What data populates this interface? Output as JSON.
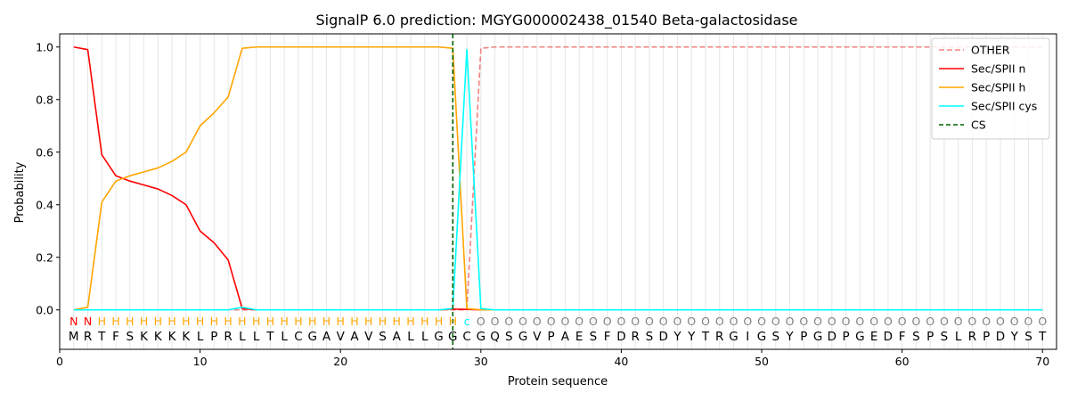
{
  "chart_data": {
    "type": "line",
    "title": "SignalP 6.0 prediction: MGYG000002438_01540 Beta-galactosidase",
    "xlabel": "Protein sequence",
    "ylabel": "Probability",
    "xlim": [
      0,
      71
    ],
    "ylim": [
      -0.15,
      1.05
    ],
    "x_ticks": [
      0,
      10,
      20,
      30,
      40,
      50,
      60,
      70
    ],
    "y_ticks": [
      0.0,
      0.2,
      0.4,
      0.6,
      0.8,
      1.0
    ],
    "x_tick_labels": [
      "0",
      "10",
      "20",
      "30",
      "40",
      "50",
      "60",
      "70"
    ],
    "y_tick_labels": [
      "0.0",
      "0.2",
      "0.4",
      "0.6",
      "0.8",
      "1.0"
    ],
    "grid": "vertical lines at each residue",
    "legend_position": "top-right",
    "sequence": [
      "M",
      "R",
      "T",
      "F",
      "S",
      "K",
      "K",
      "K",
      "K",
      "L",
      "P",
      "R",
      "L",
      "L",
      "T",
      "L",
      "C",
      "G",
      "A",
      "V",
      "A",
      "V",
      "S",
      "A",
      "L",
      "L",
      "G",
      "G",
      "C",
      "G",
      "Q",
      "S",
      "G",
      "V",
      "P",
      "A",
      "E",
      "S",
      "F",
      "D",
      "R",
      "S",
      "D",
      "Y",
      "Y",
      "T",
      "R",
      "G",
      "I",
      "G",
      "S",
      "Y",
      "P",
      "G",
      "D",
      "P",
      "G",
      "E",
      "D",
      "F",
      "S",
      "P",
      "S",
      "L",
      "R",
      "P",
      "D",
      "Y",
      "S",
      "T"
    ],
    "labels": [
      "N",
      "N",
      "H",
      "H",
      "H",
      "H",
      "H",
      "H",
      "H",
      "H",
      "H",
      "H",
      "H",
      "H",
      "H",
      "H",
      "H",
      "H",
      "H",
      "H",
      "H",
      "H",
      "H",
      "H",
      "H",
      "H",
      "H",
      "H",
      "C",
      "O",
      "O",
      "O",
      "O",
      "O",
      "O",
      "O",
      "O",
      "O",
      "O",
      "O",
      "O",
      "O",
      "O",
      "O",
      "O",
      "O",
      "O",
      "O",
      "O",
      "O",
      "O",
      "O",
      "O",
      "O",
      "O",
      "O",
      "O",
      "O",
      "O",
      "O",
      "O",
      "O",
      "O",
      "O",
      "O",
      "O",
      "O",
      "O",
      "O",
      "O"
    ],
    "label_colors": {
      "N": "#ff0000",
      "H": "#ffa500",
      "C": "#00ffff",
      "O": "#808080"
    },
    "series": [
      {
        "name": "OTHER",
        "color": "#f08080",
        "dash": "dashed",
        "values": [
          0,
          0,
          0,
          0,
          0,
          0,
          0,
          0,
          0,
          0,
          0,
          0,
          0,
          0,
          0,
          0,
          0,
          0,
          0,
          0,
          0,
          0,
          0,
          0,
          0,
          0,
          0,
          0,
          0,
          0.995,
          1,
          1,
          1,
          1,
          1,
          1,
          1,
          1,
          1,
          1,
          1,
          1,
          1,
          1,
          1,
          1,
          1,
          1,
          1,
          1,
          1,
          1,
          1,
          1,
          1,
          1,
          1,
          1,
          1,
          1,
          1,
          1,
          1,
          1,
          1,
          1,
          1,
          1,
          1,
          1
        ]
      },
      {
        "name": "Sec/SPII n",
        "color": "#ff0000",
        "dash": "solid",
        "values": [
          1.0,
          0.99,
          0.59,
          0.51,
          0.49,
          0.475,
          0.46,
          0.435,
          0.4,
          0.3,
          0.255,
          0.19,
          0.005,
          0,
          0,
          0,
          0,
          0,
          0,
          0,
          0,
          0,
          0,
          0,
          0,
          0,
          0,
          0.003,
          0.002,
          0,
          0,
          0,
          0,
          0,
          0,
          0,
          0,
          0,
          0,
          0,
          0,
          0,
          0,
          0,
          0,
          0,
          0,
          0,
          0,
          0,
          0,
          0,
          0,
          0,
          0,
          0,
          0,
          0,
          0,
          0,
          0,
          0,
          0,
          0,
          0,
          0,
          0,
          0,
          0,
          0
        ]
      },
      {
        "name": "Sec/SPII h",
        "color": "#ffa500",
        "dash": "solid",
        "values": [
          0,
          0.01,
          0.41,
          0.49,
          0.51,
          0.525,
          0.54,
          0.565,
          0.6,
          0.7,
          0.75,
          0.81,
          0.995,
          1,
          1,
          1,
          1,
          1,
          1,
          1,
          1,
          1,
          1,
          1,
          1,
          1,
          1,
          0.995,
          0.005,
          0,
          0,
          0,
          0,
          0,
          0,
          0,
          0,
          0,
          0,
          0,
          0,
          0,
          0,
          0,
          0,
          0,
          0,
          0,
          0,
          0,
          0,
          0,
          0,
          0,
          0,
          0,
          0,
          0,
          0,
          0,
          0,
          0,
          0,
          0,
          0,
          0,
          0,
          0,
          0,
          0
        ]
      },
      {
        "name": "Sec/SPII cys",
        "color": "#00ffff",
        "dash": "solid",
        "values": [
          0,
          0,
          0,
          0,
          0,
          0,
          0,
          0,
          0,
          0,
          0,
          0,
          0.01,
          0,
          0,
          0,
          0,
          0,
          0,
          0,
          0,
          0,
          0,
          0,
          0,
          0,
          0,
          0.005,
          0.99,
          0.005,
          0,
          0,
          0,
          0,
          0,
          0,
          0,
          0,
          0,
          0,
          0,
          0,
          0,
          0,
          0,
          0,
          0,
          0,
          0,
          0,
          0,
          0,
          0,
          0,
          0,
          0,
          0,
          0,
          0,
          0,
          0,
          0,
          0,
          0,
          0,
          0,
          0,
          0,
          0,
          0
        ]
      }
    ],
    "cs": {
      "name": "CS",
      "color": "#006400",
      "x": 28
    }
  }
}
